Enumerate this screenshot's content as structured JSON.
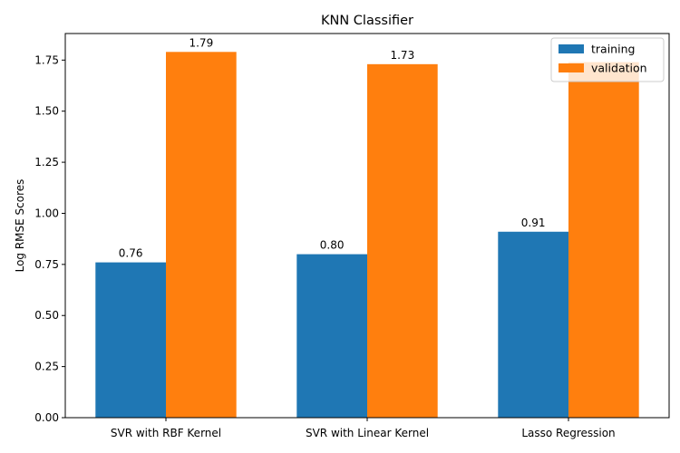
{
  "chart_data": {
    "type": "bar",
    "title": "KNN Classifier",
    "xlabel": "",
    "ylabel": "Log RMSE Scores",
    "categories": [
      "SVR with RBF Kernel",
      "SVR with Linear Kernel",
      "Lasso Regression"
    ],
    "series": [
      {
        "name": "training",
        "color": "#1f77b4",
        "values": [
          0.76,
          0.8,
          0.91
        ],
        "labels": [
          "0.76",
          "0.80",
          "0.91"
        ]
      },
      {
        "name": "validation",
        "color": "#ff7f0e",
        "values": [
          1.79,
          1.73,
          1.74
        ],
        "labels": [
          "1.79",
          "1.73",
          ""
        ]
      }
    ],
    "ylim": [
      0,
      1.88
    ],
    "yticks": [
      0.0,
      0.25,
      0.5,
      0.75,
      1.0,
      1.25,
      1.5,
      1.75
    ],
    "ytick_labels": [
      "0.00",
      "0.25",
      "0.50",
      "0.75",
      "1.00",
      "1.25",
      "1.50",
      "1.75"
    ],
    "grid": false,
    "legend_position": "top-right"
  }
}
